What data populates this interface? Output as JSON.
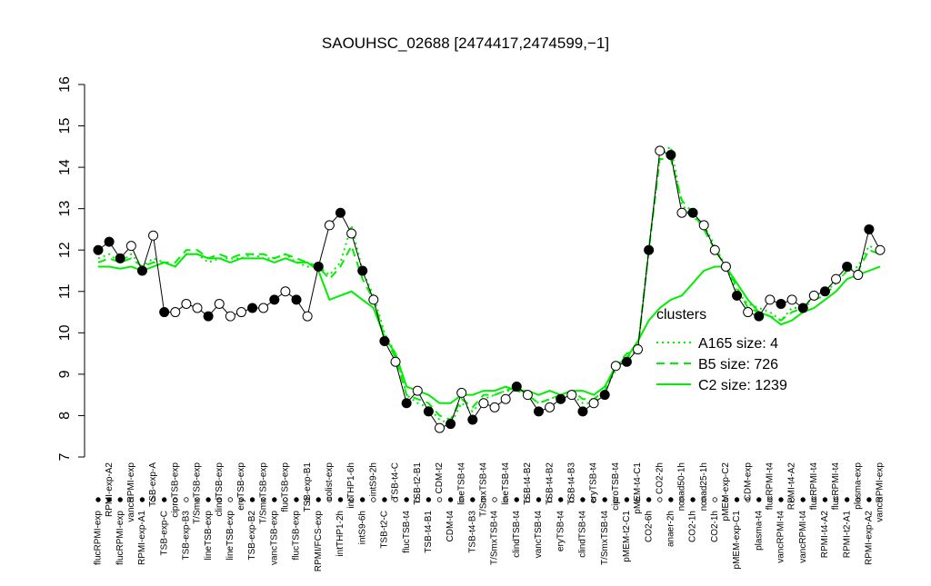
{
  "chart_data": {
    "type": "line",
    "title": "SAOUHSC_02688 [2474417,2474599,−1]",
    "categories": [
      "flucRPMI-exp",
      "RPMI-exp-A2",
      "flucRPMI-exp",
      "vancRPMI-exp",
      "RPMI-exp-A1",
      "TSB-exp-A",
      "TSB-exp-C",
      "ciproTSB-exp",
      "TSB-exp-B3",
      "T/SmxTSB-exp",
      "lineTSB-exp",
      "clindTSB-exp",
      "lineTSB-exp",
      "eryTSB-exp",
      "TSB-exp-B2",
      "T/SmxTSB-exp",
      "vancTSB-exp",
      "flucTSB-exp",
      "flucTSB-exp",
      "TSB-exp-B1",
      "RPMI/FCS-exp",
      "colist-exp",
      "intTHP1-2h",
      "intTHP1-6h",
      "intS9-6h",
      "intS9-2h",
      "TSB-t2-C",
      "TSB-t4-C",
      "flucTSB-t4",
      "TSB-t2-B1",
      "TSB-t4-B1",
      "CDM-t2",
      "CDM-t4",
      "lineTSB-t4",
      "TSB-t4-B3",
      "T/SmxTSB-t4",
      "T/SmxTSB-t4",
      "lineTSB-t4",
      "clindTSB-t4",
      "TSB-t4-B2",
      "vancTSB-t4",
      "TSB-t4-B2",
      "eryTSB-t4",
      "TSB-t4-B3",
      "clindTSB-t4",
      "eryTSB-t4",
      "T/SmxTSB-t4",
      "ciproTSB-t4",
      "pMEM-t2-C1",
      "pMEM-t4-C1",
      "CO2-6h",
      "CO2-2h",
      "anaer-2h",
      "nonad50-1h",
      "CO2-1h",
      "nonad25-1h",
      "CO2-1h",
      "pMEM-exp-C2",
      "pMEM-exp-C1",
      "CDM-exp",
      "plasma-t4",
      "flucRPMI-t4",
      "vancRPMI-t4",
      "RPMI-t4-A2",
      "vancRPMI-t4",
      "flucRPMI-t4",
      "RPMI-t4-A2",
      "flucRPMI-t4",
      "RPMI-t2-A1",
      "plasma-exp",
      "RPMI-exp-A2",
      "vancRPMI-exp"
    ],
    "points": {
      "color": "#000000",
      "values": [
        12.0,
        12.2,
        11.8,
        12.1,
        11.5,
        12.35,
        10.5,
        10.5,
        10.7,
        10.6,
        10.4,
        10.7,
        10.4,
        10.5,
        10.6,
        10.6,
        10.8,
        11.0,
        10.8,
        10.4,
        11.6,
        12.6,
        12.9,
        12.4,
        11.5,
        10.8,
        9.8,
        9.3,
        8.3,
        8.6,
        8.1,
        7.7,
        7.8,
        8.55,
        7.9,
        8.3,
        8.2,
        8.4,
        8.7,
        8.5,
        8.1,
        8.2,
        8.4,
        8.5,
        8.1,
        8.3,
        8.5,
        9.2,
        9.3,
        9.6,
        12.0,
        14.4,
        14.3,
        12.9,
        12.9,
        12.6,
        12.0,
        11.6,
        10.9,
        10.5,
        10.4,
        10.8,
        10.7,
        10.8,
        10.6,
        10.9,
        11.0,
        11.3,
        11.6,
        11.4,
        12.5,
        12.0
      ],
      "marker_filled": [
        true,
        true,
        true,
        false,
        true,
        false,
        true,
        false,
        false,
        false,
        true,
        false,
        false,
        false,
        true,
        false,
        true,
        false,
        true,
        false,
        true,
        false,
        true,
        false,
        true,
        false,
        true,
        false,
        true,
        false,
        true,
        false,
        true,
        false,
        true,
        false,
        false,
        false,
        true,
        false,
        true,
        false,
        true,
        false,
        true,
        false,
        true,
        false,
        true,
        false,
        true,
        false,
        true,
        false,
        true,
        false,
        false,
        false,
        true,
        false,
        true,
        false,
        true,
        false,
        true,
        false,
        true,
        false,
        true,
        false,
        true,
        false
      ]
    },
    "series": [
      {
        "name": "A165 size: 4",
        "color": "#00ee00",
        "style": "dotted",
        "values": [
          11.8,
          11.9,
          11.7,
          11.9,
          11.6,
          11.8,
          11.7,
          11.6,
          11.9,
          11.9,
          11.7,
          11.8,
          11.8,
          11.8,
          11.9,
          11.8,
          11.8,
          11.9,
          11.7,
          11.6,
          11.6,
          11.4,
          11.7,
          12.6,
          11.5,
          10.9,
          10.0,
          9.5,
          8.5,
          8.3,
          8.2,
          7.9,
          7.8,
          8.3,
          8.1,
          8.4,
          8.5,
          8.6,
          8.6,
          8.5,
          8.3,
          8.4,
          8.5,
          8.5,
          8.3,
          8.3,
          8.6,
          9.1,
          9.4,
          9.6,
          12.0,
          14.3,
          14.5,
          13.1,
          12.8,
          12.6,
          12.1,
          11.6,
          11.0,
          10.7,
          10.6,
          10.5,
          10.3,
          10.6,
          10.6,
          10.9,
          11.0,
          11.2,
          11.5,
          11.6,
          12.1,
          12.0
        ]
      },
      {
        "name": "B5 size: 726",
        "color": "#00ee00",
        "style": "dashed",
        "values": [
          11.7,
          11.8,
          11.7,
          11.8,
          11.6,
          11.7,
          11.7,
          11.7,
          12.0,
          12.0,
          11.8,
          11.9,
          11.8,
          11.9,
          11.9,
          11.9,
          11.8,
          11.9,
          11.8,
          11.7,
          11.6,
          11.3,
          11.6,
          12.1,
          11.3,
          10.8,
          9.9,
          9.4,
          8.5,
          8.4,
          8.3,
          8.0,
          7.9,
          8.4,
          8.2,
          8.5,
          8.5,
          8.6,
          8.7,
          8.5,
          8.3,
          8.4,
          8.5,
          8.6,
          8.4,
          8.4,
          8.6,
          9.2,
          9.5,
          9.6,
          12.0,
          14.2,
          14.2,
          13.2,
          12.9,
          12.5,
          12.0,
          11.6,
          11.1,
          10.6,
          10.5,
          10.4,
          10.3,
          10.5,
          10.6,
          10.8,
          10.9,
          11.2,
          11.5,
          11.5,
          12.0,
          11.9
        ]
      },
      {
        "name": "C2 size: 1239",
        "color": "#00ee00",
        "style": "solid",
        "values": [
          11.6,
          11.6,
          11.55,
          11.6,
          11.5,
          11.6,
          11.7,
          11.6,
          11.9,
          11.9,
          11.8,
          11.8,
          11.7,
          11.8,
          11.8,
          11.8,
          11.7,
          11.8,
          11.7,
          11.7,
          11.5,
          10.8,
          10.9,
          11.0,
          10.8,
          10.6,
          9.9,
          9.5,
          8.7,
          8.6,
          8.5,
          8.3,
          8.3,
          8.5,
          8.5,
          8.6,
          8.6,
          8.7,
          8.6,
          8.6,
          8.5,
          8.6,
          8.5,
          8.6,
          8.6,
          8.5,
          8.7,
          9.2,
          9.4,
          9.8,
          10.3,
          10.6,
          10.8,
          10.9,
          11.2,
          11.5,
          11.6,
          11.6,
          11.2,
          10.8,
          10.5,
          10.4,
          10.2,
          10.3,
          10.5,
          10.6,
          10.8,
          11.0,
          11.3,
          11.4,
          11.5,
          11.6
        ]
      }
    ],
    "ylim": [
      7,
      16
    ],
    "yticks": [
      7,
      8,
      9,
      10,
      11,
      12,
      13,
      14,
      15,
      16
    ],
    "legend_title": "clusters",
    "legend_position": "right"
  }
}
